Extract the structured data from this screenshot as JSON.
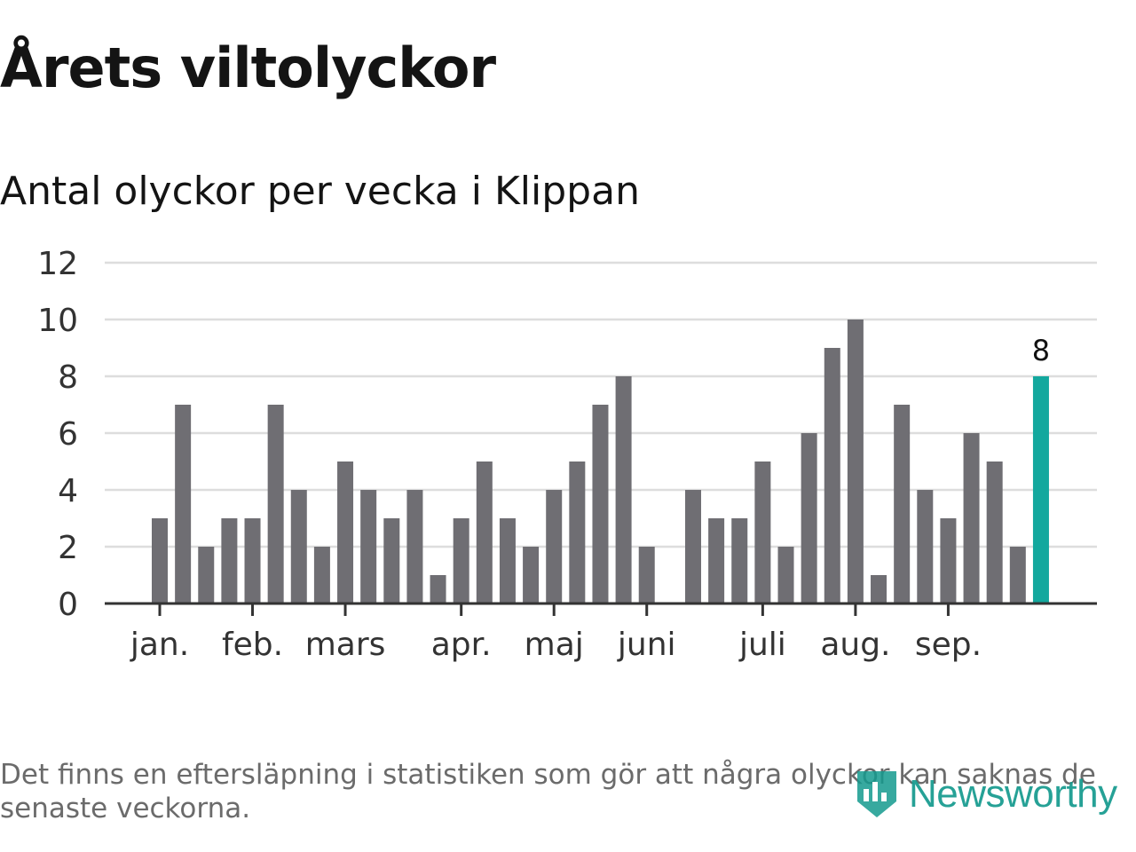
{
  "title": "Årets viltolyckor",
  "subtitle": "Antal olyckor per vecka i Klippan",
  "note": "Det finns en eftersläpning i statistiken som gör att några olyckor kan saknas de senaste veckorna.",
  "brand": {
    "name": "Newsworthy",
    "color": "#149a8e"
  },
  "colors": {
    "bar": "#6f6e73",
    "highlight": "#13a89e",
    "grid": "#dddddd",
    "axis": "#333333"
  },
  "chart_data": {
    "type": "bar",
    "title": "Antal olyckor per vecka i Klippan",
    "xlabel": "",
    "ylabel": "",
    "ylim": [
      0,
      12
    ],
    "yticks": [
      "0",
      "2",
      "4",
      "6",
      "8",
      "10",
      "12"
    ],
    "grid": true,
    "weeks": [
      1,
      2,
      3,
      4,
      5,
      6,
      7,
      8,
      9,
      10,
      11,
      12,
      13,
      14,
      15,
      16,
      17,
      18,
      19,
      20,
      21,
      22,
      23,
      24,
      25,
      26,
      27,
      28,
      29,
      30,
      31,
      32,
      33,
      34,
      35,
      36,
      37,
      38,
      39
    ],
    "values": [
      3,
      7,
      2,
      3,
      3,
      7,
      4,
      2,
      5,
      4,
      3,
      4,
      1,
      3,
      5,
      3,
      2,
      4,
      5,
      7,
      8,
      2,
      0,
      4,
      3,
      3,
      5,
      2,
      6,
      9,
      10,
      1,
      7,
      4,
      3,
      6,
      5,
      2,
      8
    ],
    "highlight_index": 38,
    "highlight_label": "8",
    "month_labels": [
      {
        "label": "jan.",
        "week": 1
      },
      {
        "label": "feb.",
        "week": 5
      },
      {
        "label": "mars",
        "week": 9
      },
      {
        "label": "apr.",
        "week": 14
      },
      {
        "label": "maj",
        "week": 18
      },
      {
        "label": "juni",
        "week": 22
      },
      {
        "label": "juli",
        "week": 27
      },
      {
        "label": "aug.",
        "week": 31
      },
      {
        "label": "sep.",
        "week": 35
      }
    ]
  }
}
